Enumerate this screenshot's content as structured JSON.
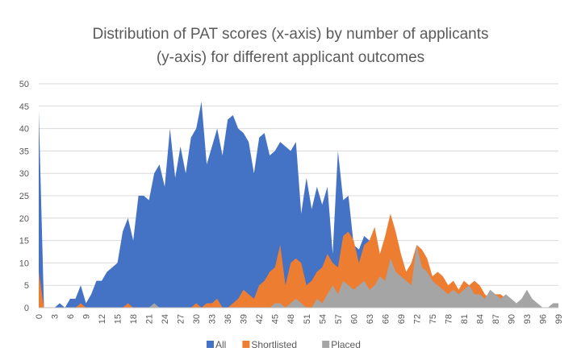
{
  "chart_data": {
    "type": "area",
    "title_line1": "Distribution of PAT scores (x-axis) by number of applicants",
    "title_line2": "(y-axis) for different applicant outcomes",
    "xlabel": "",
    "ylabel": "",
    "ylim": [
      0,
      50
    ],
    "y_ticks": [
      "0",
      "5",
      "10",
      "15",
      "20",
      "25",
      "30",
      "35",
      "40",
      "45",
      "50"
    ],
    "x_tick_labels": [
      "0",
      "3",
      "6",
      "9",
      "12",
      "15",
      "18",
      "21",
      "24",
      "27",
      "30",
      "33",
      "36",
      "39",
      "42",
      "45",
      "48",
      "51",
      "54",
      "57",
      "60",
      "63",
      "66",
      "69",
      "72",
      "75",
      "78",
      "81",
      "84",
      "87",
      "90",
      "93",
      "96",
      "99"
    ],
    "x": [
      0,
      1,
      2,
      3,
      4,
      5,
      6,
      7,
      8,
      9,
      10,
      11,
      12,
      13,
      14,
      15,
      16,
      17,
      18,
      19,
      20,
      21,
      22,
      23,
      24,
      25,
      26,
      27,
      28,
      29,
      30,
      31,
      32,
      33,
      34,
      35,
      36,
      37,
      38,
      39,
      40,
      41,
      42,
      43,
      44,
      45,
      46,
      47,
      48,
      49,
      50,
      51,
      52,
      53,
      54,
      55,
      56,
      57,
      58,
      59,
      60,
      61,
      62,
      63,
      64,
      65,
      66,
      67,
      68,
      69,
      70,
      71,
      72,
      73,
      74,
      75,
      76,
      77,
      78,
      79,
      80,
      81,
      82,
      83,
      84,
      85,
      86,
      87,
      88,
      89,
      90,
      91,
      92,
      93,
      94,
      95,
      96,
      97,
      98,
      99
    ],
    "grid": true,
    "legend_position": "bottom",
    "colors": {
      "All": "#4472c4",
      "Shortlisted": "#ed7d31",
      "Placed": "#a5a5a5"
    },
    "series": [
      {
        "name": "All",
        "values": [
          44,
          0,
          0,
          0,
          1,
          0,
          2,
          2,
          5,
          1,
          3,
          6,
          6,
          8,
          9,
          10,
          17,
          20,
          15,
          25,
          25,
          24,
          30,
          32,
          27,
          40,
          29,
          36,
          30,
          38,
          40,
          46,
          32,
          36,
          40,
          34,
          42,
          43,
          40,
          39,
          37,
          30,
          38,
          39,
          34,
          35,
          37,
          36,
          35,
          37,
          21,
          29,
          22,
          27,
          23,
          27,
          12,
          35,
          24,
          25,
          14,
          13,
          16,
          15,
          13,
          11,
          14,
          13,
          11,
          10,
          8,
          7,
          7,
          6,
          6,
          5,
          5,
          4,
          4,
          4,
          3,
          3,
          3,
          2,
          2,
          2,
          2,
          2,
          2,
          1,
          1,
          1,
          1,
          1,
          1,
          1,
          0,
          0,
          1,
          1
        ]
      },
      {
        "name": "Shortlisted",
        "values": [
          8,
          0,
          0,
          0,
          0,
          0,
          0,
          0,
          1,
          0,
          0,
          0,
          0,
          0,
          0,
          0,
          0,
          1,
          0,
          0,
          0,
          0,
          0,
          0,
          0,
          0,
          0,
          0,
          0,
          0,
          1,
          0,
          1,
          1,
          2,
          0,
          0,
          1,
          2,
          4,
          3,
          2,
          5,
          6,
          8,
          9,
          14,
          5,
          10,
          11,
          10,
          5,
          6,
          8,
          9,
          12,
          10,
          9,
          16,
          17,
          15,
          10,
          14,
          15,
          18,
          12,
          16,
          21,
          17,
          12,
          8,
          10,
          14,
          13,
          11,
          7,
          8,
          7,
          5,
          6,
          4,
          6,
          5,
          6,
          5,
          3,
          2,
          3,
          3,
          2,
          1,
          1,
          1,
          0,
          0,
          0,
          0,
          0,
          0,
          0
        ]
      },
      {
        "name": "Placed",
        "values": [
          0,
          0,
          0,
          0,
          0,
          0,
          0,
          0,
          0,
          0,
          0,
          0,
          0,
          0,
          0,
          0,
          0,
          0,
          0,
          0,
          0,
          0,
          1,
          0,
          0,
          0,
          0,
          0,
          0,
          0,
          0,
          0,
          0,
          0,
          0,
          0,
          0,
          0,
          0,
          0,
          0,
          0,
          0,
          0,
          0,
          1,
          1,
          0,
          1,
          2,
          1,
          0,
          0,
          2,
          1,
          3,
          5,
          3,
          6,
          5,
          4,
          5,
          6,
          4,
          5,
          7,
          6,
          11,
          8,
          7,
          6,
          5,
          14,
          9,
          8,
          6,
          5,
          4,
          3,
          4,
          3,
          4,
          5,
          3,
          3,
          2,
          4,
          3,
          2,
          3,
          2,
          1,
          2,
          4,
          2,
          1,
          0,
          0,
          1,
          1
        ]
      }
    ]
  }
}
